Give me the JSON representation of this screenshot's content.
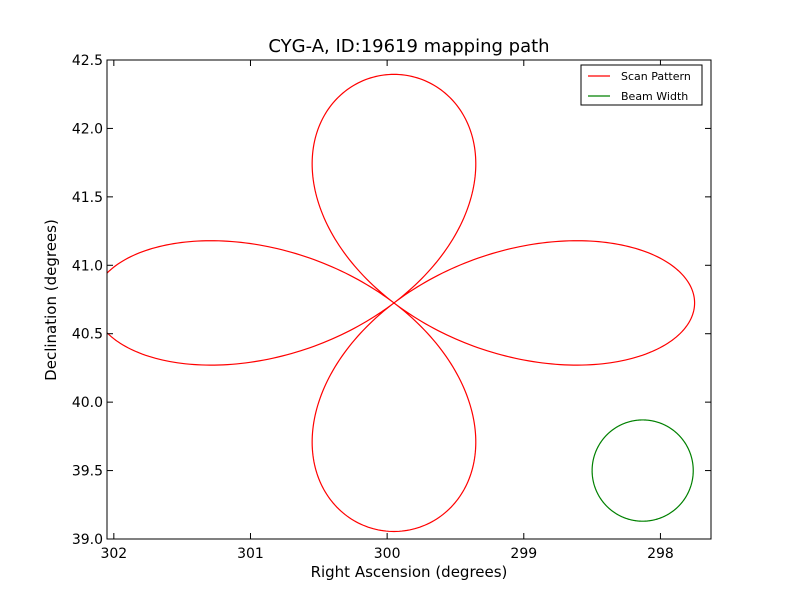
{
  "chart_data": {
    "type": "line",
    "title": "CYG-A, ID:19619 mapping path",
    "xlabel": "Right Ascension (degrees)",
    "ylabel": "Declination (degrees)",
    "xlim": [
      302.05,
      297.63
    ],
    "ylim": [
      39.0,
      42.5
    ],
    "x_axis_inverted": true,
    "xticks": [
      302,
      301,
      300,
      299,
      298
    ],
    "xtick_labels": [
      "302",
      "301",
      "300",
      "299",
      "298"
    ],
    "yticks": [
      39.0,
      39.5,
      40.0,
      40.5,
      41.0,
      41.5,
      42.0,
      42.5
    ],
    "ytick_labels": [
      "39.0",
      "39.5",
      "40.0",
      "40.5",
      "41.0",
      "41.5",
      "42.0",
      "42.5"
    ],
    "grid": false,
    "legend_position": "top-right",
    "series": [
      {
        "name": "Scan Pattern",
        "color": "#ff0000",
        "shape": "four-petal rose",
        "center": [
          299.95,
          40.725
        ],
        "radius_ra": 2.2,
        "radius_dec": 1.67
      },
      {
        "name": "Beam Width",
        "color": "#008000",
        "shape": "circle",
        "center": [
          298.13,
          39.5
        ],
        "radius_ra": 0.37,
        "radius_dec": 0.37
      }
    ]
  }
}
